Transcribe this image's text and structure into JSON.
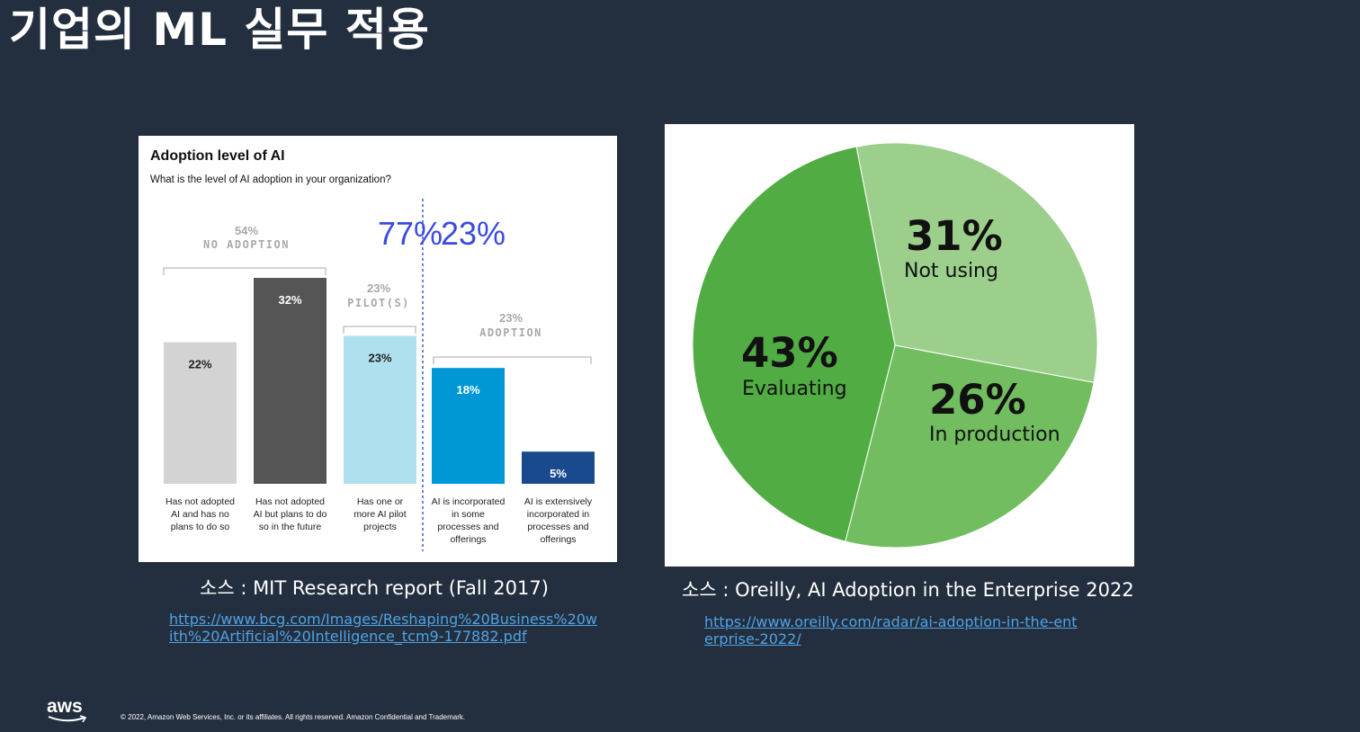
{
  "slide": {
    "title": "기업의 ML 실무 적용",
    "footer": "© 2022, Amazon Web Services, Inc. or its affiliates. All rights reserved. Amazon Confidential and Trademark.",
    "logo_text": "aws"
  },
  "left": {
    "source": "소스 : MIT Research report (Fall 2017)",
    "link": "https://www.bcg.com/Images/Reshaping%20Business%20with%20Artificial%20Intelligence_tcm9-177882.pdf"
  },
  "right": {
    "source": "소스 : Oreilly, AI Adoption in the Enterprise 2022",
    "link": "https://www.oreilly.com/radar/ai-adoption-in-the-enterprise-2022/"
  },
  "chart_data": [
    {
      "type": "bar",
      "title": "Adoption level of AI",
      "subtitle": "What is the level of AI adoption in your organization?",
      "categories": [
        "Has not adopted AI and has no plans to do so",
        "Has not adopted AI but plans to do so in the future",
        "Has one or more AI pilot projects",
        "AI is incorporated in some processes and offerings",
        "AI is extensively incorporated in processes and offerings"
      ],
      "values": [
        22,
        32,
        23,
        18,
        5
      ],
      "value_labels": [
        "22%",
        "32%",
        "23%",
        "18%",
        "5%"
      ],
      "colors": [
        "#d3d3d3",
        "#555555",
        "#aee0ee",
        "#0097d6",
        "#1a4a8e"
      ],
      "ylim": [
        0,
        32
      ],
      "groups": [
        {
          "percent": "54%",
          "label": "NO ADOPTION"
        },
        {
          "percent": "23%",
          "label": "PILOT(S)"
        },
        {
          "percent": "23%",
          "label": "ADOPTION"
        }
      ],
      "callouts": [
        "77%",
        "23%"
      ]
    },
    {
      "type": "pie",
      "labels": [
        "Not using",
        "In production",
        "Evaluating"
      ],
      "values": [
        31,
        26,
        43
      ],
      "value_labels": [
        "31%",
        "26%",
        "43%"
      ],
      "colors": [
        "#9ccf8c",
        "#72bd5f",
        "#50ac43"
      ]
    }
  ]
}
